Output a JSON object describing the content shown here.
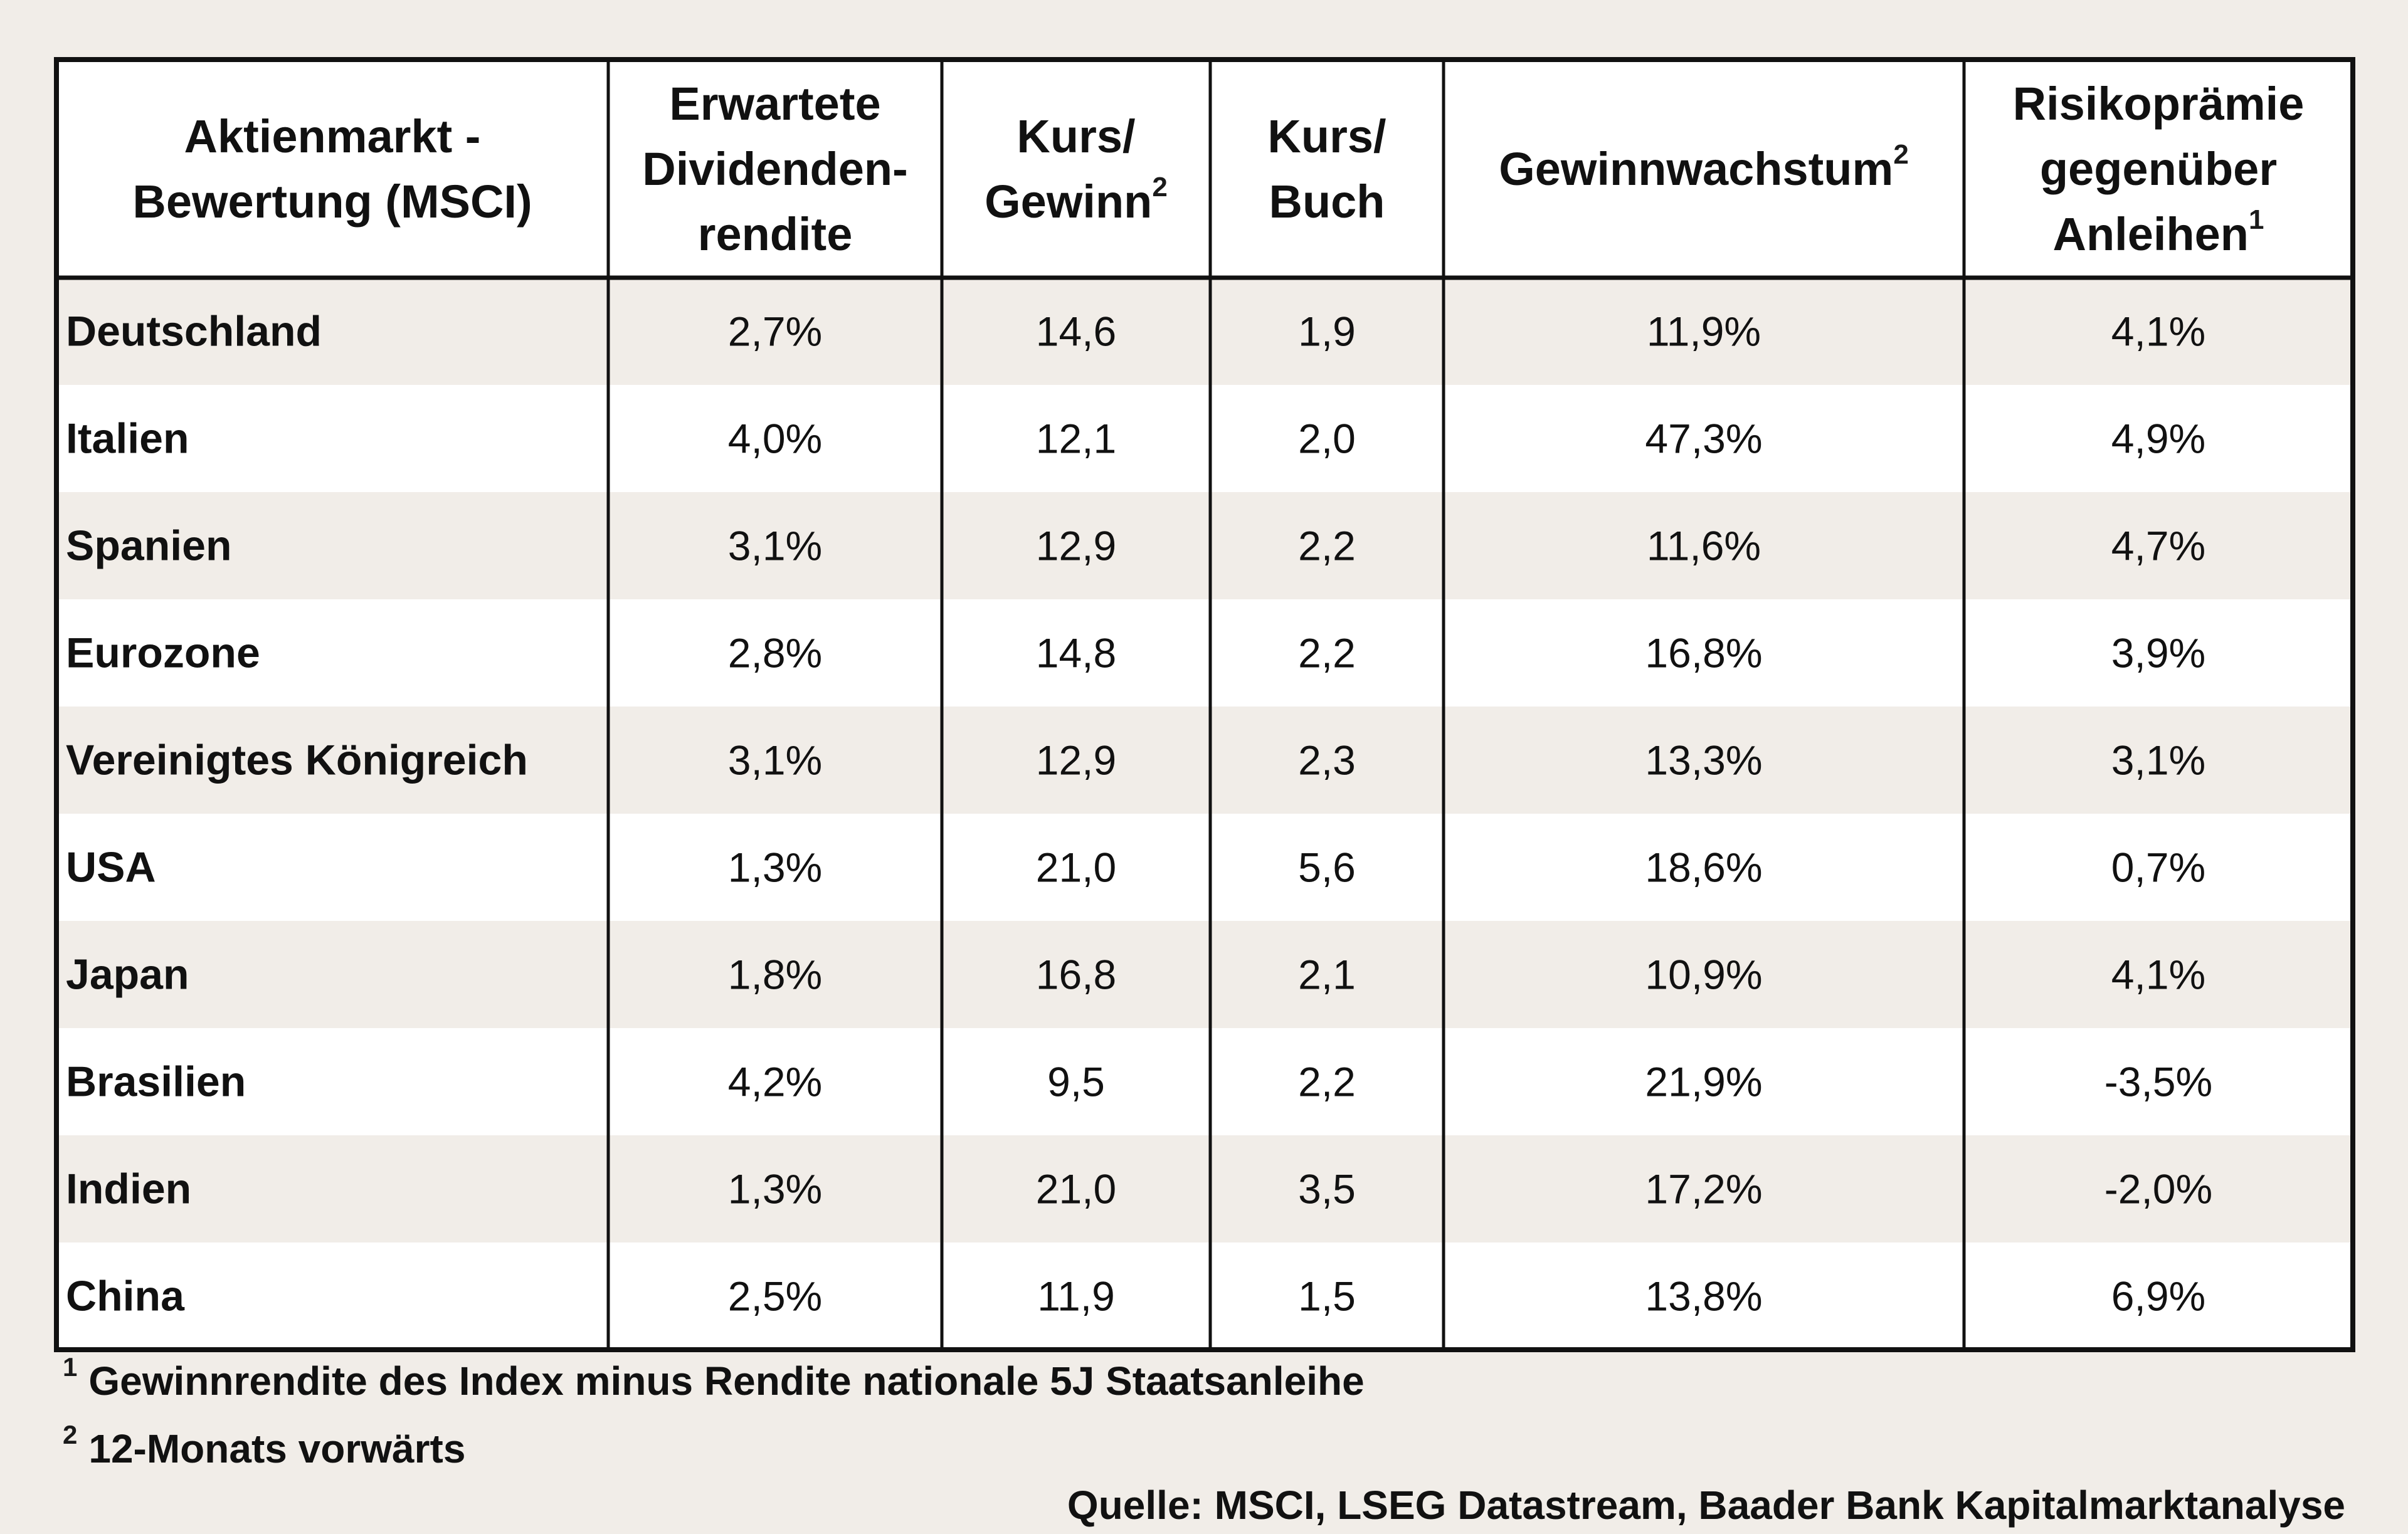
{
  "chart_data": {
    "type": "table",
    "columns": [
      {
        "label": "Aktienmarkt - Bewertung (MSCI)",
        "lines": [
          "Aktienmarkt -",
          "Bewertung (MSCI)"
        ],
        "sup": ""
      },
      {
        "label": "Erwartete Dividenden-rendite",
        "lines": [
          "Erwartete",
          "Dividenden-",
          "rendite"
        ],
        "sup": ""
      },
      {
        "label": "Kurs/Gewinn",
        "lines": [
          "Kurs/",
          "Gewinn"
        ],
        "sup": "2"
      },
      {
        "label": "Kurs/Buch",
        "lines": [
          "Kurs/",
          "Buch"
        ],
        "sup": ""
      },
      {
        "label": "Gewinnwachstum",
        "lines": [
          "Gewinnwachstum"
        ],
        "sup": "2"
      },
      {
        "label": "Risikoprämie gegenüber Anleihen",
        "lines": [
          "Risikoprämie",
          "gegenüber",
          "Anleihen"
        ],
        "sup": "1"
      }
    ],
    "rows": [
      {
        "label": "Deutschland",
        "values": [
          "2,7%",
          "14,6",
          "1,9",
          "11,9%",
          "4,1%"
        ]
      },
      {
        "label": "Italien",
        "values": [
          "4,0%",
          "12,1",
          "2,0",
          "47,3%",
          "4,9%"
        ]
      },
      {
        "label": "Spanien",
        "values": [
          "3,1%",
          "12,9",
          "2,2",
          "11,6%",
          "4,7%"
        ]
      },
      {
        "label": "Eurozone",
        "values": [
          "2,8%",
          "14,8",
          "2,2",
          "16,8%",
          "3,9%"
        ]
      },
      {
        "label": "Vereinigtes Königreich",
        "values": [
          "3,1%",
          "12,9",
          "2,3",
          "13,3%",
          "3,1%"
        ]
      },
      {
        "label": "USA",
        "values": [
          "1,3%",
          "21,0",
          "5,6",
          "18,6%",
          "0,7%"
        ]
      },
      {
        "label": "Japan",
        "values": [
          "1,8%",
          "16,8",
          "2,1",
          "10,9%",
          "4,1%"
        ]
      },
      {
        "label": "Brasilien",
        "values": [
          "4,2%",
          "9,5",
          "2,2",
          "21,9%",
          "-3,5%"
        ]
      },
      {
        "label": "Indien",
        "values": [
          "1,3%",
          "21,0",
          "3,5",
          "17,2%",
          "-2,0%"
        ]
      },
      {
        "label": "China",
        "values": [
          "2,5%",
          "11,9",
          "1,5",
          "13,8%",
          "6,9%"
        ]
      }
    ],
    "footnotes": [
      {
        "marker": "1",
        "text": "Gewinnrendite des Index minus Rendite nationale 5J Staatsanleihe"
      },
      {
        "marker": "2",
        "text": "12-Monats vorwärts"
      }
    ],
    "source": "Quelle: MSCI, LSEG Datastream, Baader Bank Kapitalmarktanalyse"
  },
  "colors": {
    "page_background": "#f1ede8",
    "header_background": "#ffffff",
    "row_shaded": "#f1ede8",
    "row_plain": "#ffffff",
    "border": "#111111",
    "text": "#111111"
  }
}
